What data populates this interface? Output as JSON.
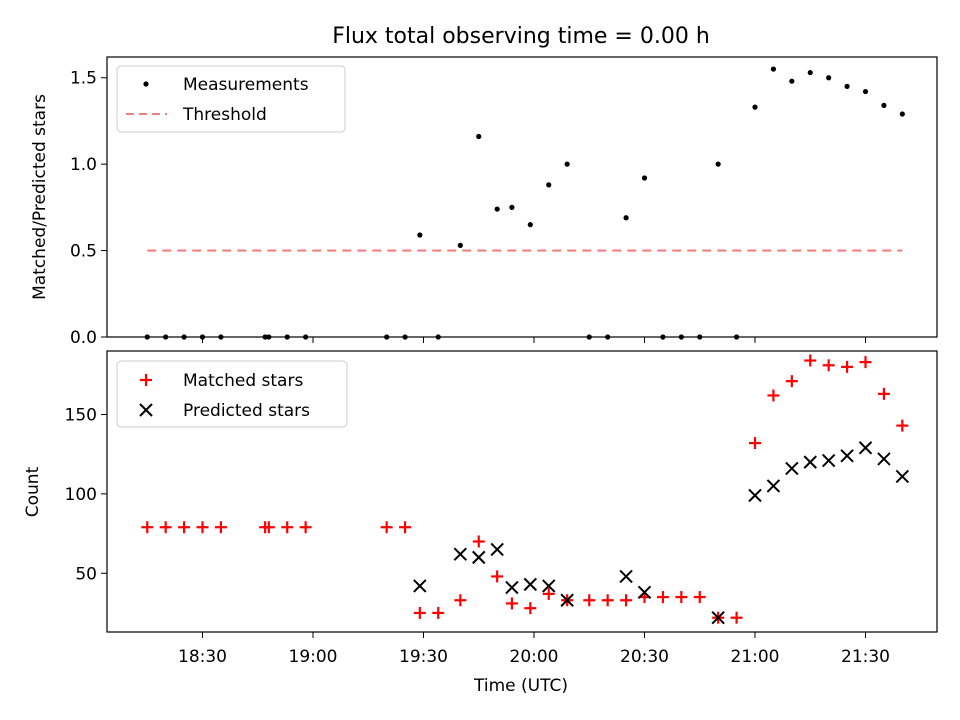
{
  "chart_data": [
    {
      "type": "scatter",
      "title": "Flux total observing time = 0.00 h",
      "ylabel": "Matched/Predicted stars",
      "xlabel": "",
      "ylim": [
        0,
        1.62
      ],
      "yticks": [
        "0.0",
        "0.5",
        "1.0",
        "1.5"
      ],
      "legend": "top-left",
      "threshold": 0.5,
      "series": [
        {
          "name": "Measurements",
          "color": "#000000",
          "marker": "dot",
          "points": [
            [
              "18:15",
              0
            ],
            [
              "18:20",
              0
            ],
            [
              "18:25",
              0
            ],
            [
              "18:30",
              0
            ],
            [
              "18:35",
              0
            ],
            [
              "18:47",
              0
            ],
            [
              "18:48",
              0
            ],
            [
              "18:53",
              0
            ],
            [
              "18:58",
              0
            ],
            [
              "19:20",
              0
            ],
            [
              "19:25",
              0
            ],
            [
              "19:29",
              0.59
            ],
            [
              "19:34",
              0
            ],
            [
              "19:40",
              0.53
            ],
            [
              "19:45",
              1.16
            ],
            [
              "19:50",
              0.74
            ],
            [
              "19:54",
              0.75
            ],
            [
              "19:59",
              0.65
            ],
            [
              "20:04",
              0.88
            ],
            [
              "20:09",
              1.0
            ],
            [
              "20:15",
              0
            ],
            [
              "20:20",
              0
            ],
            [
              "20:25",
              0.69
            ],
            [
              "20:30",
              0.92
            ],
            [
              "20:35",
              0
            ],
            [
              "20:40",
              0
            ],
            [
              "20:45",
              0
            ],
            [
              "20:50",
              1.0
            ],
            [
              "20:55",
              0
            ],
            [
              "21:00",
              1.33
            ],
            [
              "21:05",
              1.55
            ],
            [
              "21:10",
              1.48
            ],
            [
              "21:15",
              1.53
            ],
            [
              "21:20",
              1.5
            ],
            [
              "21:25",
              1.45
            ],
            [
              "21:30",
              1.42
            ],
            [
              "21:35",
              1.34
            ],
            [
              "21:40",
              1.29
            ]
          ]
        },
        {
          "name": "Threshold",
          "color": "#f08080",
          "marker": "dashed-line",
          "points": [
            [
              "18:15",
              0.5
            ],
            [
              "21:40",
              0.5
            ]
          ]
        }
      ]
    },
    {
      "type": "scatter",
      "title": "",
      "ylabel": "Count",
      "xlabel": "Time (UTC)",
      "ylim": [
        13,
        190
      ],
      "yticks": [
        "50",
        "100",
        "150"
      ],
      "xticks": [
        "18:30",
        "19:00",
        "19:30",
        "20:00",
        "20:30",
        "21:00",
        "21:30"
      ],
      "legend": "top-left",
      "series": [
        {
          "name": "Matched stars",
          "color": "#ff0000",
          "marker": "plus",
          "points": [
            [
              "18:15",
              79
            ],
            [
              "18:20",
              79
            ],
            [
              "18:25",
              79
            ],
            [
              "18:30",
              79
            ],
            [
              "18:35",
              79
            ],
            [
              "18:47",
              79
            ],
            [
              "18:48",
              79
            ],
            [
              "18:53",
              79
            ],
            [
              "18:58",
              79
            ],
            [
              "19:20",
              79
            ],
            [
              "19:25",
              79
            ],
            [
              "19:29",
              25
            ],
            [
              "19:34",
              25
            ],
            [
              "19:40",
              33
            ],
            [
              "19:45",
              70
            ],
            [
              "19:50",
              48
            ],
            [
              "19:54",
              31
            ],
            [
              "19:59",
              28
            ],
            [
              "20:04",
              37
            ],
            [
              "20:09",
              33
            ],
            [
              "20:15",
              33
            ],
            [
              "20:20",
              33
            ],
            [
              "20:25",
              33
            ],
            [
              "20:30",
              35
            ],
            [
              "20:35",
              35
            ],
            [
              "20:40",
              35
            ],
            [
              "20:45",
              35
            ],
            [
              "20:50",
              22
            ],
            [
              "20:55",
              22
            ],
            [
              "21:00",
              132
            ],
            [
              "21:05",
              162
            ],
            [
              "21:10",
              171
            ],
            [
              "21:15",
              184
            ],
            [
              "21:20",
              181
            ],
            [
              "21:25",
              180
            ],
            [
              "21:30",
              183
            ],
            [
              "21:35",
              163
            ],
            [
              "21:40",
              143
            ]
          ]
        },
        {
          "name": "Predicted stars",
          "color": "#000000",
          "marker": "x",
          "points": [
            [
              "19:29",
              42
            ],
            [
              "19:40",
              62
            ],
            [
              "19:45",
              60
            ],
            [
              "19:50",
              65
            ],
            [
              "19:54",
              41
            ],
            [
              "19:59",
              43
            ],
            [
              "20:04",
              42
            ],
            [
              "20:09",
              33
            ],
            [
              "20:25",
              48
            ],
            [
              "20:30",
              38
            ],
            [
              "20:50",
              22
            ],
            [
              "21:00",
              99
            ],
            [
              "21:05",
              105
            ],
            [
              "21:10",
              116
            ],
            [
              "21:15",
              120
            ],
            [
              "21:20",
              121
            ],
            [
              "21:25",
              124
            ],
            [
              "21:30",
              129
            ],
            [
              "21:35",
              122
            ],
            [
              "21:40",
              111
            ]
          ]
        }
      ]
    }
  ]
}
